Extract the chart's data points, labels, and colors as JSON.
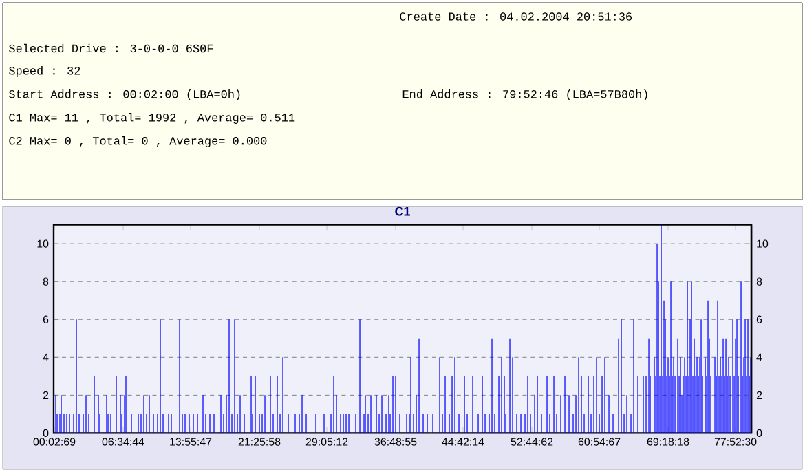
{
  "chart_data": {
    "type": "bar",
    "title": "C1",
    "annotations": [
      "Create Date        : 04.02.2004 20:51:36",
      "Selected Drive : 3-0-0-0                 6S0F",
      "Speed          : 32",
      "Start Address  : 00:02:00 (LBA=0h)",
      "End Address    : 79:52:46 (LBA=57B80h)",
      "C1 Max= 11 , Total= 1992 , Average= 0.511",
      "C2 Max= 0 , Total= 0 , Average= 0.000"
    ],
    "color": "#0000ff",
    "categories": [
      "00:02:69",
      null,
      null,
      null,
      null,
      null,
      null,
      null,
      null,
      null,
      null,
      null,
      null,
      null,
      null,
      null,
      null,
      null,
      null,
      null,
      null,
      null,
      null,
      null,
      null,
      null,
      null,
      null,
      null,
      null,
      null,
      null,
      null,
      null,
      null,
      null,
      null,
      null,
      null,
      null,
      null,
      null,
      null,
      null,
      null,
      null,
      null,
      null,
      null,
      null,
      "06:34:44",
      null,
      null,
      null,
      null,
      null,
      null,
      null,
      null,
      null,
      null,
      null,
      null,
      null,
      null,
      null,
      null,
      null,
      null,
      null,
      null,
      null,
      null,
      null,
      null,
      null,
      null,
      null,
      null,
      null,
      null,
      null,
      null,
      null,
      null,
      null,
      null,
      null,
      null,
      null,
      null,
      null,
      null,
      null,
      null,
      null,
      null,
      null,
      null,
      "13:55:47",
      null,
      null,
      null,
      null,
      null,
      null,
      null,
      null,
      null,
      null,
      null,
      null,
      null,
      null,
      null,
      null,
      null,
      null,
      null,
      null,
      null,
      null,
      null,
      null,
      null,
      null,
      null,
      null,
      null,
      null,
      null,
      null,
      null,
      null,
      null,
      null,
      null,
      null,
      null,
      null,
      null,
      null,
      null,
      null,
      null,
      null,
      null,
      null,
      null,
      "21:25:58",
      null,
      null,
      null,
      null,
      null,
      null,
      null,
      null,
      null,
      null,
      null,
      null,
      null,
      null,
      null,
      null,
      null,
      null,
      null,
      null,
      null,
      null,
      null,
      null,
      null,
      null,
      null,
      null,
      null,
      null,
      null,
      null,
      null,
      null,
      null,
      null,
      null,
      null,
      null,
      null,
      null,
      null,
      null,
      null,
      null,
      null,
      null,
      null,
      "29:05:12",
      null,
      null,
      null,
      null,
      null,
      null,
      null,
      null,
      null,
      null,
      null,
      null,
      null,
      null,
      null,
      null,
      null,
      null,
      null,
      null,
      null,
      null,
      null,
      null,
      null,
      null,
      null,
      null,
      null,
      null,
      null,
      null,
      null,
      null,
      null,
      null,
      null,
      null,
      null,
      null,
      null,
      null,
      null,
      null,
      null,
      null,
      null,
      null,
      null,
      "36:48:55",
      null,
      null,
      null,
      null,
      null,
      null,
      null,
      null,
      null,
      null,
      null,
      null,
      null,
      null,
      null,
      null,
      null,
      null,
      null,
      null,
      null,
      null,
      null,
      null,
      null,
      null,
      null,
      null,
      null,
      null,
      null,
      null,
      null,
      null,
      null,
      null,
      null,
      null,
      null,
      null,
      null,
      null,
      null,
      null,
      null,
      null,
      null,
      null,
      "44:42:14",
      null,
      null,
      null,
      null,
      null,
      null,
      null,
      null,
      null,
      null,
      null,
      null,
      null,
      null,
      null,
      null,
      null,
      null,
      null,
      null,
      null,
      null,
      null,
      null,
      null,
      null,
      null,
      null,
      null,
      null,
      null,
      null,
      null,
      null,
      null,
      null,
      null,
      null,
      null,
      null,
      null,
      null,
      null,
      null,
      null,
      null,
      null,
      null,
      null,
      "52:44:62",
      null,
      null,
      null,
      null,
      null,
      null,
      null,
      null,
      null,
      null,
      null,
      null,
      null,
      null,
      null,
      null,
      null,
      null,
      null,
      null,
      null,
      null,
      null,
      null,
      null,
      null,
      null,
      null,
      null,
      null,
      null,
      null,
      null,
      null,
      null,
      null,
      null,
      null,
      null,
      null,
      null,
      null,
      null,
      null,
      null,
      null,
      null,
      null,
      "60:54:67",
      null,
      null,
      null,
      null,
      null,
      null,
      null,
      null,
      null,
      null,
      null,
      null,
      null,
      null,
      null,
      null,
      null,
      null,
      null,
      null,
      null,
      null,
      null,
      null,
      null,
      null,
      null,
      null,
      null,
      null,
      null,
      null,
      null,
      null,
      null,
      null,
      null,
      null,
      null,
      null,
      null,
      null,
      null,
      null,
      null,
      null,
      null,
      null,
      null,
      "69:18:18",
      null,
      null,
      null,
      null,
      null,
      null,
      null,
      null,
      null,
      null,
      null,
      null,
      null,
      null,
      null,
      null,
      null,
      null,
      null,
      null,
      null,
      null,
      null,
      null,
      null,
      null,
      null,
      null,
      null,
      null,
      null,
      null,
      null,
      null,
      null,
      null,
      null,
      null,
      null,
      null,
      null,
      null,
      null,
      null,
      null,
      null,
      null,
      null,
      "77:52:30",
      null,
      null,
      null,
      null,
      null,
      null,
      null,
      null,
      null,
      null,
      null
    ],
    "values": [
      0,
      2,
      1,
      0,
      1,
      2,
      0,
      1,
      0,
      1,
      0,
      1,
      0,
      0,
      1,
      0,
      6,
      0,
      1,
      0,
      0,
      1,
      0,
      2,
      0,
      1,
      0,
      0,
      0,
      3,
      0,
      0,
      2,
      1,
      0,
      0,
      0,
      0,
      2,
      1,
      0,
      1,
      0,
      0,
      0,
      3,
      0,
      0,
      2,
      1,
      0,
      2,
      3,
      0,
      0,
      0,
      1,
      0,
      0,
      0,
      0,
      1,
      0,
      1,
      0,
      2,
      0,
      1,
      0,
      2,
      0,
      0,
      1,
      0,
      0,
      1,
      0,
      6,
      0,
      1,
      0,
      0,
      0,
      1,
      0,
      1,
      0,
      0,
      0,
      0,
      0,
      6,
      0,
      1,
      0,
      1,
      0,
      0,
      1,
      0,
      0,
      1,
      0,
      0,
      1,
      0,
      0,
      0,
      2,
      0,
      1,
      0,
      0,
      1,
      0,
      0,
      1,
      0,
      0,
      0,
      0,
      2,
      0,
      1,
      0,
      2,
      0,
      6,
      0,
      1,
      0,
      6,
      0,
      1,
      0,
      2,
      0,
      0,
      1,
      0,
      0,
      0,
      0,
      3,
      1,
      0,
      3,
      0,
      0,
      1,
      0,
      1,
      0,
      2,
      0,
      0,
      0,
      3,
      0,
      1,
      0,
      0,
      3,
      0,
      1,
      0,
      4,
      0,
      0,
      0,
      1,
      0,
      0,
      0,
      0,
      1,
      0,
      0,
      1,
      0,
      2,
      0,
      0,
      1,
      0,
      0,
      0,
      0,
      0,
      0,
      1,
      0,
      0,
      0,
      0,
      0,
      1,
      0,
      0,
      0,
      0,
      1,
      0,
      3,
      0,
      2,
      0,
      0,
      1,
      0,
      1,
      0,
      1,
      0,
      1,
      0,
      0,
      0,
      0,
      1,
      0,
      0,
      6,
      0,
      0,
      1,
      2,
      0,
      1,
      0,
      2,
      0,
      0,
      0,
      2,
      0,
      1,
      0,
      2,
      0,
      0,
      1,
      0,
      2,
      1,
      0,
      3,
      0,
      3,
      0,
      0,
      1,
      0,
      0,
      0,
      0,
      1,
      0,
      1,
      4,
      0,
      1,
      0,
      2,
      0,
      5,
      0,
      0,
      1,
      0,
      0,
      1,
      0,
      0,
      0,
      1,
      0,
      0,
      0,
      0,
      4,
      0,
      1,
      0,
      3,
      0,
      0,
      1,
      0,
      3,
      0,
      4,
      0,
      0,
      1,
      0,
      0,
      0,
      3,
      0,
      1,
      0,
      0,
      0,
      3,
      0,
      0,
      0,
      1,
      0,
      0,
      3,
      0,
      1,
      0,
      0,
      1,
      0,
      5,
      0,
      1,
      0,
      0,
      3,
      0,
      4,
      0,
      3,
      1,
      0,
      0,
      5,
      0,
      4,
      0,
      0,
      1,
      0,
      0,
      1,
      0,
      0,
      1,
      0,
      3,
      0,
      1,
      0,
      0,
      2,
      0,
      3,
      0,
      0,
      1,
      0,
      0,
      0,
      3,
      0,
      1,
      0,
      0,
      3,
      0,
      1,
      0,
      0,
      2,
      0,
      0,
      3,
      0,
      0,
      2,
      0,
      0,
      1,
      0,
      2,
      0,
      4,
      0,
      3,
      0,
      1,
      0,
      0,
      3,
      0,
      1,
      0,
      3,
      0,
      4,
      0,
      1,
      0,
      3,
      0,
      4,
      0,
      0,
      2,
      0,
      0,
      1,
      0,
      0,
      0,
      5,
      0,
      6,
      0,
      1,
      0,
      2,
      0,
      0,
      1,
      0,
      6,
      0,
      0,
      3,
      0,
      0,
      0,
      3,
      0,
      3,
      0,
      5,
      3,
      0,
      0,
      4,
      3,
      10,
      8,
      3,
      11,
      3,
      7,
      6,
      3,
      4,
      3,
      8,
      3,
      4,
      3,
      0,
      5,
      3,
      4,
      2,
      3,
      4,
      3,
      8,
      3,
      6,
      8,
      3,
      5,
      3,
      4,
      3,
      4,
      6,
      3,
      0,
      4,
      3,
      7,
      5,
      3,
      0,
      0,
      4,
      3,
      7,
      3,
      4,
      3,
      5,
      3,
      5,
      3,
      4,
      3,
      0,
      6,
      3,
      5,
      6,
      3,
      0,
      8,
      3,
      4,
      6,
      3,
      6,
      3,
      4
    ],
    "ylim": [
      0,
      11
    ],
    "yticks": [
      0,
      2,
      4,
      6,
      8,
      10
    ],
    "y2lim": [
      0,
      11
    ],
    "y2ticks": [
      0,
      2,
      4,
      6,
      8,
      10
    ],
    "grid": "y"
  }
}
